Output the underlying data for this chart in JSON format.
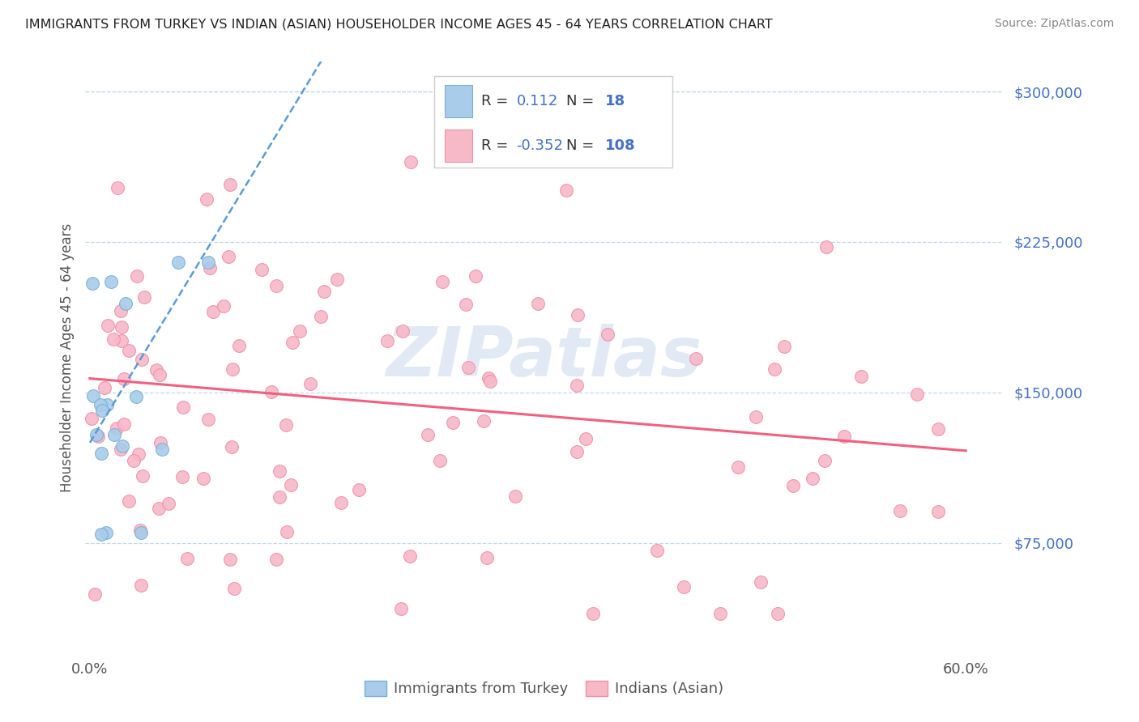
{
  "title": "IMMIGRANTS FROM TURKEY VS INDIAN (ASIAN) HOUSEHOLDER INCOME AGES 45 - 64 YEARS CORRELATION CHART",
  "source": "Source: ZipAtlas.com",
  "ylabel": "Householder Income Ages 45 - 64 years",
  "ytick_labels": [
    "$300,000",
    "$225,000",
    "$150,000",
    "$75,000"
  ],
  "ytick_values": [
    300000,
    225000,
    150000,
    75000
  ],
  "ymin": 20000,
  "ymax": 315000,
  "xmin": -0.003,
  "xmax": 0.625,
  "turkey_R": 0.112,
  "turkey_N": 18,
  "india_R": -0.352,
  "india_N": 108,
  "turkey_color": "#A8CCEA",
  "india_color": "#F7B8C8",
  "turkey_edge_color": "#7AAED6",
  "india_edge_color": "#F090A8",
  "turkey_line_color": "#5B9BD5",
  "india_line_color": "#F06080",
  "legend_label_1": "Immigrants from Turkey",
  "legend_label_2": "Indians (Asian)",
  "watermark": "ZIPatlas",
  "background_color": "#ffffff",
  "title_color": "#222222",
  "source_color": "#888888",
  "axis_label_color": "#555555",
  "ytick_color": "#4472C4",
  "xtick_color": "#555555",
  "grid_color": "#C0D8EE",
  "legend_text_color": "#333333",
  "legend_value_color": "#4472C4",
  "turkey_line_intercept": 125000,
  "turkey_line_slope": 1200000,
  "india_line_intercept": 157000,
  "india_line_slope": -60000
}
